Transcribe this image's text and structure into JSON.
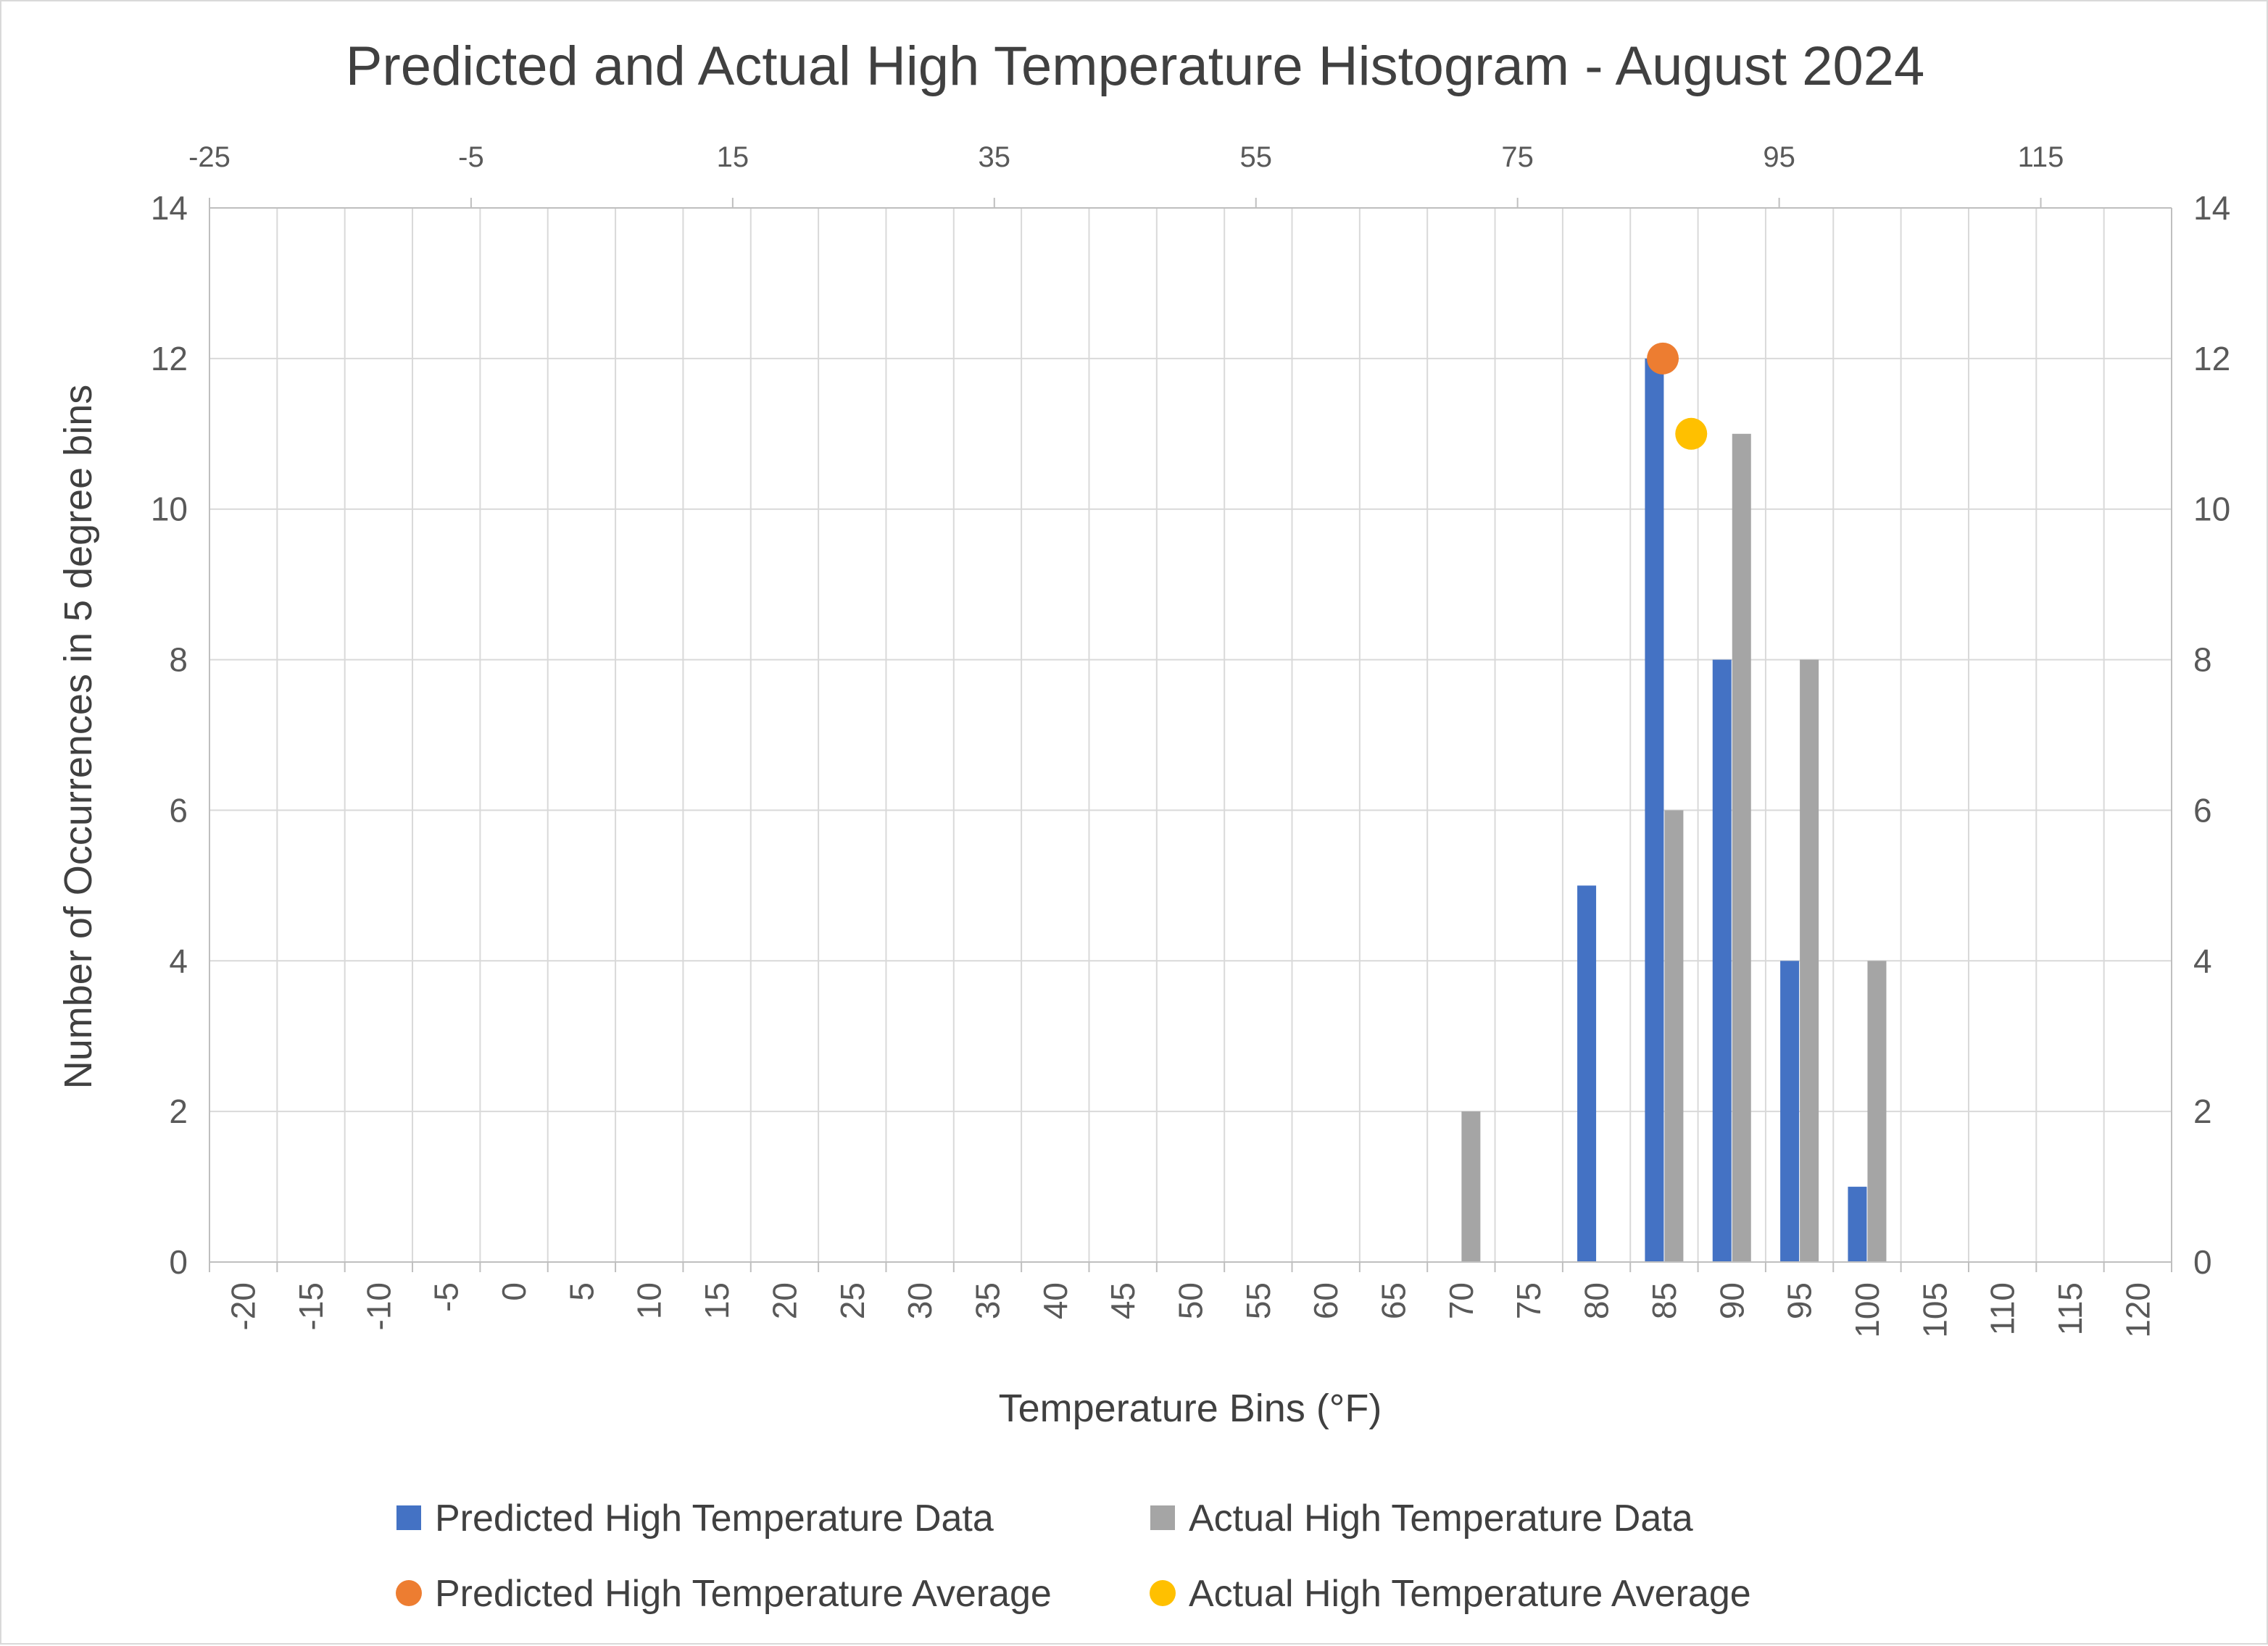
{
  "chart_data": {
    "type": "bar",
    "title": "Predicted and Actual High Temperature Histogram - August 2024",
    "xlabel": "Temperature Bins (°F)",
    "ylabel": "Number of Occurrences in 5 degree bins",
    "categories": [
      "-20",
      "-15",
      "-10",
      "-5",
      "0",
      "5",
      "10",
      "15",
      "20",
      "25",
      "30",
      "35",
      "40",
      "45",
      "50",
      "55",
      "60",
      "65",
      "70",
      "75",
      "80",
      "85",
      "90",
      "95",
      "100",
      "105",
      "110",
      "115",
      "120"
    ],
    "series": [
      {
        "name": "Predicted High Temperature Data",
        "color": "#4472c4",
        "values": [
          0,
          0,
          0,
          0,
          0,
          0,
          0,
          0,
          0,
          0,
          0,
          0,
          0,
          0,
          0,
          0,
          0,
          0,
          0,
          0,
          5,
          12,
          8,
          4,
          1,
          0,
          0,
          0,
          0
        ]
      },
      {
        "name": "Actual High Temperature Data",
        "color": "#a5a5a5",
        "values": [
          0,
          0,
          0,
          0,
          0,
          0,
          0,
          0,
          0,
          0,
          0,
          0,
          0,
          0,
          0,
          0,
          0,
          0,
          2,
          0,
          0,
          6,
          11,
          8,
          4,
          0,
          0,
          0,
          0
        ]
      }
    ],
    "scatter_series": [
      {
        "name": "Predicted High Temperature Average",
        "color": "#ed7d31",
        "x": 84.9,
        "y": 12
      },
      {
        "name": "Actual High Temperature Average",
        "color": "#ffc000",
        "x": 87.0,
        "y": 11
      }
    ],
    "ylim": [
      0,
      14
    ],
    "yticks": [
      "0",
      "2",
      "4",
      "6",
      "8",
      "10",
      "12",
      "14"
    ],
    "secondary_x": {
      "ticks": [
        "-25",
        "-5",
        "15",
        "35",
        "55",
        "75",
        "95",
        "115"
      ],
      "range": [
        -25,
        125
      ]
    },
    "legend_position": "bottom"
  }
}
